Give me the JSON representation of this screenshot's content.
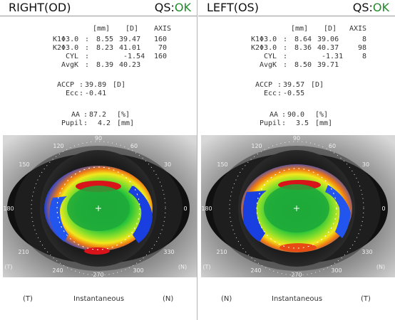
{
  "right": {
    "title": "RIGHT(OD)",
    "qs_label": "QS:",
    "qs_status": "OK",
    "units": {
      "mm": "[mm]",
      "d": "[D]",
      "axis": "AXIS"
    },
    "rows": [
      {
        "label": "K1Φ3.0",
        "colon": ":",
        "mm": "8.55",
        "d": "39.47",
        "axis": "160"
      },
      {
        "label": "K2Φ3.0",
        "colon": ":",
        "mm": "8.23",
        "d": "41.01",
        "axis": "70"
      },
      {
        "label": "CYL",
        "colon": ":",
        "mm": "",
        "d": "-1.54",
        "axis": "160"
      },
      {
        "label": "AvgK",
        "colon": ":",
        "mm": "8.39",
        "d": "40.23",
        "axis": ""
      }
    ],
    "accp": {
      "label": "ACCP",
      "colon": ":",
      "value": "39.89",
      "unit": "[D]"
    },
    "ecc": {
      "label": "Ecc",
      "colon": ":",
      "value": "-0.41"
    },
    "aa": {
      "label": "AA",
      "colon": ":",
      "value": "87.2",
      "unit": "[%]"
    },
    "pupil": {
      "label": "Pupil",
      "colon": ":",
      "value": "4.2",
      "unit": "[mm]"
    },
    "dial": {
      "t90": "90",
      "t60": "60",
      "t30": "30",
      "t0": "0",
      "t330": "330",
      "t300": "300",
      "t270": "270",
      "t240": "240",
      "t210": "210",
      "t180": "180",
      "t150": "150",
      "t120": "120",
      "side_l": "(T)",
      "side_r": "(N)"
    },
    "caption_left": "(T)",
    "caption_mid": "Instantaneous",
    "caption_right": "(N)"
  },
  "left": {
    "title": "LEFT(OS)",
    "qs_label": "QS:",
    "qs_status": "OK",
    "units": {
      "mm": "[mm]",
      "d": "[D]",
      "axis": "AXIS"
    },
    "rows": [
      {
        "label": "K1Φ3.0",
        "colon": ":",
        "mm": "8.64",
        "d": "39.06",
        "axis": "8"
      },
      {
        "label": "K2Φ3.0",
        "colon": ":",
        "mm": "8.36",
        "d": "40.37",
        "axis": "98"
      },
      {
        "label": "CYL",
        "colon": ":",
        "mm": "",
        "d": "-1.31",
        "axis": "8"
      },
      {
        "label": "AvgK",
        "colon": ":",
        "mm": "8.50",
        "d": "39.71",
        "axis": ""
      }
    ],
    "accp": {
      "label": "ACCP",
      "colon": ":",
      "value": "39.57",
      "unit": "[D]"
    },
    "ecc": {
      "label": "Ecc",
      "colon": ":",
      "value": "-0.55"
    },
    "aa": {
      "label": "AA",
      "colon": ":",
      "value": "90.0",
      "unit": "[%]"
    },
    "pupil": {
      "label": "Pupil",
      "colon": ":",
      "value": "3.5",
      "unit": "[mm]"
    },
    "dial": {
      "t90": "90",
      "t60": "60",
      "t30": "30",
      "t0": "0",
      "t330": "330",
      "t300": "300",
      "t270": "270",
      "t240": "240",
      "t210": "210",
      "t180": "180",
      "t150": "150",
      "t120": "120",
      "side_l": "(T)",
      "side_r": "(N)"
    },
    "caption_left": "(N)",
    "caption_mid": "Instantaneous",
    "caption_right": "(T)"
  }
}
